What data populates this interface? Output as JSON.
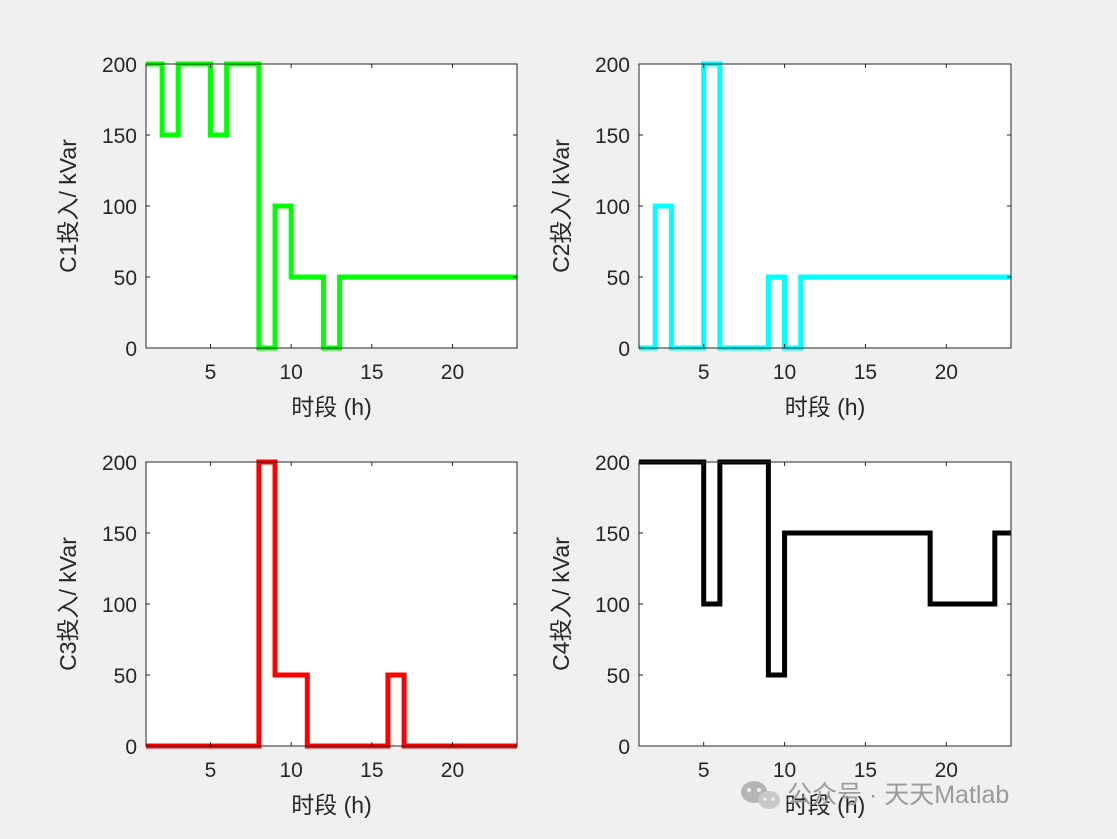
{
  "chart_data": [
    {
      "type": "line",
      "step": "post",
      "xlabel": "时段 (h)",
      "ylabel": "C1投入/ kVar",
      "xlim": [
        1,
        24
      ],
      "ylim": [
        0,
        200
      ],
      "xticks": [
        5,
        10,
        15,
        20
      ],
      "yticks": [
        0,
        50,
        100,
        150,
        200
      ],
      "color": "#00ff00",
      "x": [
        1,
        2,
        3,
        4,
        5,
        6,
        7,
        8,
        9,
        10,
        11,
        12,
        13,
        14,
        15,
        16,
        17,
        18,
        19,
        20,
        21,
        22,
        23,
        24
      ],
      "y": [
        200,
        150,
        200,
        200,
        150,
        200,
        200,
        0,
        100,
        50,
        50,
        0,
        50,
        50,
        50,
        50,
        50,
        50,
        50,
        50,
        50,
        50,
        50,
        50
      ]
    },
    {
      "type": "line",
      "step": "post",
      "xlabel": "时段 (h)",
      "ylabel": "C2投入/ kVar",
      "xlim": [
        1,
        24
      ],
      "ylim": [
        0,
        200
      ],
      "xticks": [
        5,
        10,
        15,
        20
      ],
      "yticks": [
        0,
        50,
        100,
        150,
        200
      ],
      "color": "#00ffff",
      "x": [
        1,
        2,
        3,
        4,
        5,
        6,
        7,
        8,
        9,
        10,
        11,
        12,
        13,
        14,
        15,
        16,
        17,
        18,
        19,
        20,
        21,
        22,
        23,
        24
      ],
      "y": [
        0,
        100,
        0,
        0,
        200,
        0,
        0,
        0,
        50,
        0,
        50,
        50,
        50,
        50,
        50,
        50,
        50,
        50,
        50,
        50,
        50,
        50,
        50,
        50
      ]
    },
    {
      "type": "line",
      "step": "post",
      "xlabel": "时段 (h)",
      "ylabel": "C3投入/ kVar",
      "xlim": [
        1,
        24
      ],
      "ylim": [
        0,
        200
      ],
      "xticks": [
        5,
        10,
        15,
        20
      ],
      "yticks": [
        0,
        50,
        100,
        150,
        200
      ],
      "color": "#ff0000",
      "x": [
        1,
        2,
        3,
        4,
        5,
        6,
        7,
        8,
        9,
        10,
        11,
        12,
        13,
        14,
        15,
        16,
        17,
        18,
        19,
        20,
        21,
        22,
        23,
        24
      ],
      "y": [
        0,
        0,
        0,
        0,
        0,
        0,
        0,
        200,
        50,
        50,
        0,
        0,
        0,
        0,
        0,
        50,
        0,
        0,
        0,
        0,
        0,
        0,
        0,
        0
      ]
    },
    {
      "type": "line",
      "step": "post",
      "xlabel": "时段 (h)",
      "ylabel": "C4投入/ kVar",
      "xlim": [
        1,
        24
      ],
      "ylim": [
        0,
        200
      ],
      "xticks": [
        5,
        10,
        15,
        20
      ],
      "yticks": [
        0,
        50,
        100,
        150,
        200
      ],
      "color": "#000000",
      "x": [
        1,
        2,
        3,
        4,
        5,
        6,
        7,
        8,
        9,
        10,
        11,
        12,
        13,
        14,
        15,
        16,
        17,
        18,
        19,
        20,
        21,
        22,
        23,
        24
      ],
      "y": [
        200,
        200,
        200,
        200,
        100,
        200,
        200,
        200,
        50,
        150,
        150,
        150,
        150,
        150,
        150,
        150,
        150,
        150,
        100,
        100,
        100,
        100,
        150,
        150
      ]
    }
  ],
  "watermark": {
    "text": "公众号 · 天天Matlab",
    "icon": "wechat-icon"
  }
}
